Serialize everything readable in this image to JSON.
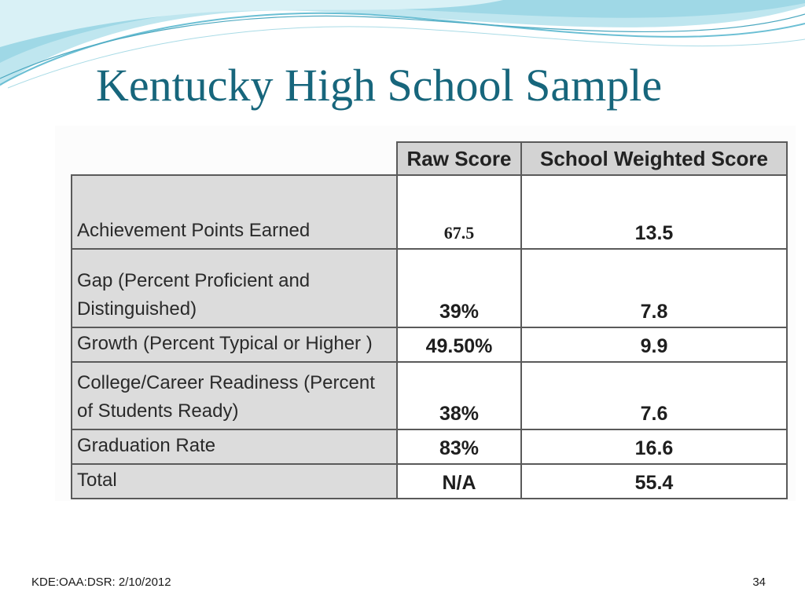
{
  "slide": {
    "title": "Kentucky High School Sample",
    "footer_text": "KDE:OAA:DSR: 2/10/2012",
    "page_number": "34",
    "accent_color": "#17667c"
  },
  "table": {
    "columns": [
      "Raw Score",
      "School Weighted Score"
    ],
    "rows": [
      {
        "label": "Achievement Points Earned",
        "raw": "67.5",
        "weighted": "13.5"
      },
      {
        "label": "Gap (Percent Proficient and Distinguished)",
        "raw": "39%",
        "weighted": "7.8"
      },
      {
        "label": "Growth (Percent Typical or Higher )",
        "raw": "49.50%",
        "weighted": "9.9"
      },
      {
        "label": "College/Career Readiness (Percent of Students Ready)",
        "raw": "38%",
        "weighted": "7.6"
      },
      {
        "label": "Graduation Rate",
        "raw": "83%",
        "weighted": "16.6"
      },
      {
        "label": "Total",
        "raw": "N/A",
        "weighted": "55.4"
      }
    ]
  }
}
